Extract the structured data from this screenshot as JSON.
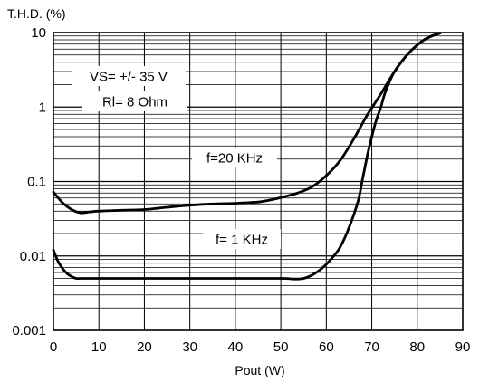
{
  "chart_data": {
    "type": "line",
    "ylabel": "T.H.D.  (%)",
    "xlabel": "Pout  (W)",
    "y_scale": "log",
    "grid": true,
    "xlim": [
      0,
      90
    ],
    "ylim": [
      0.001,
      10
    ],
    "x_ticks": [
      "0",
      "10",
      "20",
      "30",
      "40",
      "50",
      "60",
      "70",
      "80",
      "90"
    ],
    "y_ticks": [
      "0.001",
      "0.01",
      "0.1",
      "1",
      "10"
    ],
    "annotations": [
      "VS= +/- 35 V",
      "Rl= 8 Ohm",
      "f=20 KHz",
      "f= 1 KHz"
    ],
    "series": [
      {
        "name": "f=20 KHz",
        "x": [
          0,
          2,
          4,
          6,
          8,
          10,
          15,
          20,
          25,
          30,
          35,
          40,
          45,
          48,
          51,
          54,
          57,
          60,
          63,
          66,
          69,
          72,
          75,
          78,
          81,
          83,
          85
        ],
        "y": [
          0.072,
          0.052,
          0.042,
          0.038,
          0.039,
          0.04,
          0.041,
          0.042,
          0.045,
          0.048,
          0.05,
          0.051,
          0.053,
          0.057,
          0.063,
          0.071,
          0.086,
          0.12,
          0.19,
          0.37,
          0.78,
          1.5,
          3.0,
          5.2,
          7.6,
          8.9,
          9.8
        ]
      },
      {
        "name": "f= 1 KHz",
        "x": [
          0,
          1,
          2,
          3,
          4,
          5,
          6,
          10,
          20,
          30,
          40,
          50,
          53,
          55,
          57,
          59,
          61,
          63,
          65,
          67,
          68,
          69,
          70,
          71,
          72,
          73,
          75,
          78,
          81,
          83,
          85
        ],
        "y": [
          0.012,
          0.0085,
          0.0068,
          0.0058,
          0.0053,
          0.005,
          0.005,
          0.005,
          0.005,
          0.005,
          0.005,
          0.005,
          0.0049,
          0.005,
          0.0056,
          0.0068,
          0.009,
          0.013,
          0.024,
          0.055,
          0.11,
          0.22,
          0.4,
          0.67,
          1.0,
          1.6,
          3.0,
          5.2,
          7.6,
          8.9,
          9.8
        ]
      }
    ]
  }
}
